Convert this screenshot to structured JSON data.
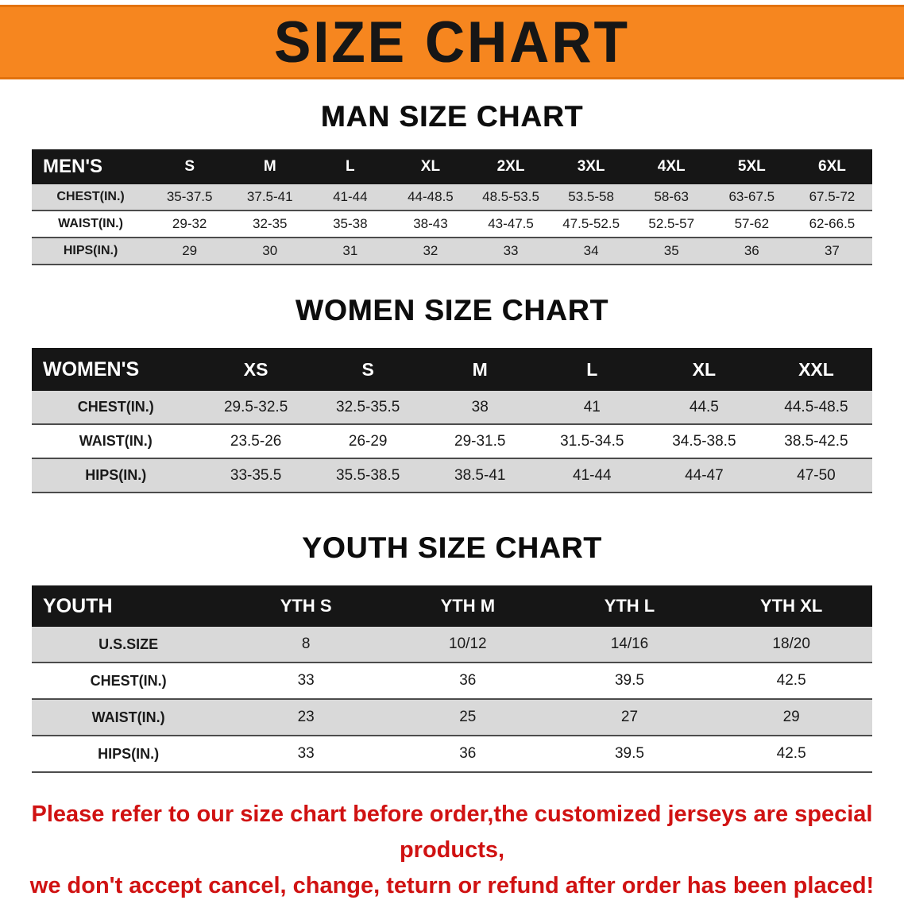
{
  "banner": {
    "title": "SIZE CHART",
    "bg_color": "#f6861f"
  },
  "colors": {
    "banner_orange": "#f6861f",
    "table_header_black": "#161616",
    "row_gray": "#d9d9d9",
    "notice_red": "#d01212"
  },
  "sections": {
    "men": {
      "title": "MAN SIZE CHART",
      "table": {
        "header": {
          "label": "MEN'S",
          "cols": [
            "S",
            "M",
            "L",
            "XL",
            "2XL",
            "3XL",
            "4XL",
            "5XL",
            "6XL"
          ]
        },
        "rows": [
          {
            "label": "CHEST(IN.)",
            "values": [
              "35-37.5",
              "37.5-41",
              "41-44",
              "44-48.5",
              "48.5-53.5",
              "53.5-58",
              "58-63",
              "63-67.5",
              "67.5-72"
            ]
          },
          {
            "label": "WAIST(IN.)",
            "values": [
              "29-32",
              "32-35",
              "35-38",
              "38-43",
              "43-47.5",
              "47.5-52.5",
              "52.5-57",
              "57-62",
              "62-66.5"
            ]
          },
          {
            "label": "HIPS(IN.)",
            "values": [
              "29",
              "30",
              "31",
              "32",
              "33",
              "34",
              "35",
              "36",
              "37"
            ]
          }
        ]
      }
    },
    "women": {
      "title": "WOMEN SIZE CHART",
      "table": {
        "header": {
          "label": "WOMEN'S",
          "cols": [
            "XS",
            "S",
            "M",
            "L",
            "XL",
            "XXL"
          ]
        },
        "rows": [
          {
            "label": "CHEST(IN.)",
            "values": [
              "29.5-32.5",
              "32.5-35.5",
              "38",
              "41",
              "44.5",
              "44.5-48.5"
            ]
          },
          {
            "label": "WAIST(IN.)",
            "values": [
              "23.5-26",
              "26-29",
              "29-31.5",
              "31.5-34.5",
              "34.5-38.5",
              "38.5-42.5"
            ]
          },
          {
            "label": "HIPS(IN.)",
            "values": [
              "33-35.5",
              "35.5-38.5",
              "38.5-41",
              "41-44",
              "44-47",
              "47-50"
            ]
          }
        ]
      }
    },
    "youth": {
      "title": "YOUTH SIZE CHART",
      "table": {
        "header": {
          "label": "YOUTH",
          "cols": [
            "YTH S",
            "YTH M",
            "YTH L",
            "YTH XL"
          ]
        },
        "rows": [
          {
            "label": "U.S.SIZE",
            "values": [
              "8",
              "10/12",
              "14/16",
              "18/20"
            ]
          },
          {
            "label": "CHEST(IN.)",
            "values": [
              "33",
              "36",
              "39.5",
              "42.5"
            ]
          },
          {
            "label": "WAIST(IN.)",
            "values": [
              "23",
              "25",
              "27",
              "29"
            ]
          },
          {
            "label": "HIPS(IN.)",
            "values": [
              "33",
              "36",
              "39.5",
              "42.5"
            ]
          }
        ]
      }
    }
  },
  "footer": {
    "line1": "Please refer to our size chart before order,the customized jerseys are special products,",
    "line2": "we don't accept cancel, change, teturn or refund after order has been placed!"
  }
}
